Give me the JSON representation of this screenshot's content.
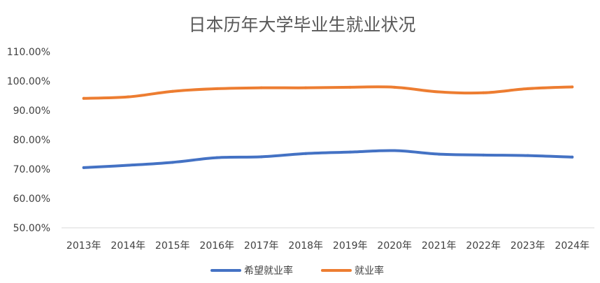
{
  "chart_data": {
    "type": "line",
    "title": "日本历年大学毕业生就业状况",
    "categories": [
      "2013年",
      "2014年",
      "2015年",
      "2016年",
      "2017年",
      "2018年",
      "2019年",
      "2020年",
      "2021年",
      "2022年",
      "2023年",
      "2024年"
    ],
    "series": [
      {
        "name": "希望就业率",
        "color": "#4472c4",
        "values": [
          70.5,
          71.3,
          72.3,
          73.9,
          74.2,
          75.3,
          75.8,
          76.3,
          75.1,
          74.8,
          74.6,
          74.1
        ]
      },
      {
        "name": "就业率",
        "color": "#ed7d31",
        "values": [
          94.1,
          94.6,
          96.5,
          97.4,
          97.7,
          97.7,
          97.9,
          97.9,
          96.3,
          96.0,
          97.4,
          98.0
        ]
      }
    ],
    "yticks": [
      "50.00%",
      "60.00%",
      "70.00%",
      "80.00%",
      "90.00%",
      "100.00%",
      "110.00%"
    ],
    "ylim": [
      50,
      110
    ],
    "ystep": 10,
    "grid": false,
    "legend": "bottom"
  }
}
